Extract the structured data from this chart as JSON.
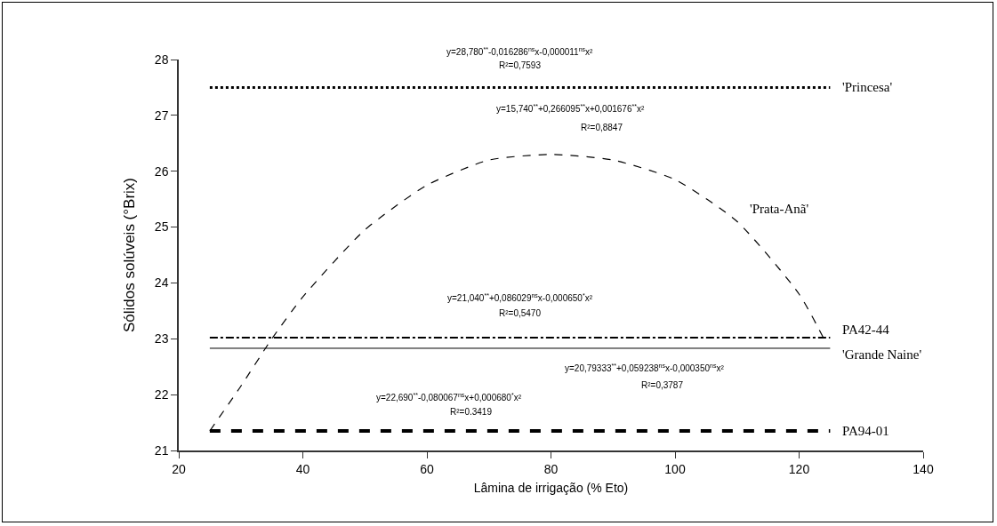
{
  "chart_data": {
    "type": "line",
    "xlabel": "Lâmina de irrigação (% Eto)",
    "ylabel": "Sólidos solúveis (°Brix)",
    "xlim": [
      20,
      140
    ],
    "xticks": [
      20,
      40,
      60,
      80,
      100,
      120,
      140
    ],
    "ylim": [
      21,
      28
    ],
    "yticks": [
      21,
      22,
      23,
      24,
      25,
      26,
      27,
      28
    ],
    "grid": false,
    "marker": "none",
    "series": [
      {
        "name": "'Princesa'",
        "color": "#000000",
        "line_style": "dotted",
        "x": [
          25,
          125
        ],
        "values": [
          27.5,
          27.5
        ]
      },
      {
        "name": "'Prata-Anã'",
        "color": "#000000",
        "line_style": "dashed",
        "x": [
          25,
          30,
          35,
          40,
          50,
          60,
          70,
          80,
          90,
          100,
          110,
          120,
          124
        ],
        "values": [
          21.35,
          22.15,
          23.0,
          23.75,
          24.95,
          25.75,
          26.2,
          26.3,
          26.2,
          25.85,
          25.1,
          23.8,
          23.0
        ]
      },
      {
        "name": "PA42-44",
        "color": "#000000",
        "line_style": "dashdot",
        "x": [
          25,
          125
        ],
        "values": [
          23.02,
          23.02
        ]
      },
      {
        "name": "'Grande Naine'",
        "color": "#000000",
        "line_style": "solid",
        "x": [
          25,
          125
        ],
        "values": [
          22.83,
          22.83
        ]
      },
      {
        "name": "PA94-01",
        "color": "#000000",
        "line_style": "dashed",
        "x": [
          25,
          125
        ],
        "values": [
          21.35,
          21.35
        ]
      }
    ],
    "annotations": [
      "y=28,780$^{**}$-0,016286$^{ns}$x-0,000011$^{ns}$x²",
      "R²=0,7593",
      "y=15,740$^{**}$+0,266095$^{**}$x+0,001676$^{**}$x²",
      "R²=0,8847",
      "y=21,040$^{**}$+0,086029$^{ns}$x-0,000650$^{*}$x²",
      "R²=0,5470",
      "y=20,79333$^{**}$+0,059238$^{ns}$x-0,000350$^{ns}$x²",
      "R²=0,3787",
      "y=22,690$^{**}$-0,080067$^{ns}$x+0,000680$^{*}$x²",
      "R²=0.3419"
    ]
  }
}
